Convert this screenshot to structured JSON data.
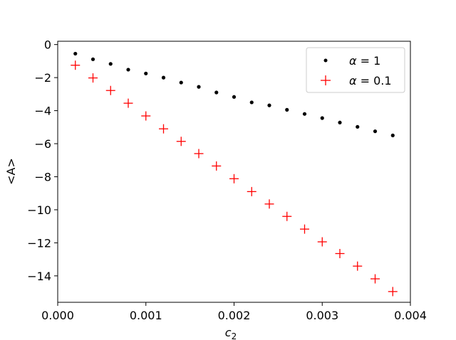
{
  "chart_data": {
    "type": "scatter",
    "title": "",
    "xlabel": "c",
    "xlabel_sub": "2",
    "ylabel": "<A>",
    "xlim": [
      0.0,
      0.004
    ],
    "ylim": [
      -15.6,
      0.2
    ],
    "xticks": [
      0.0,
      0.001,
      0.002,
      0.003,
      0.004
    ],
    "xtick_labels": [
      "0.000",
      "0.001",
      "0.002",
      "0.003",
      "0.004"
    ],
    "yticks": [
      0,
      -2,
      -4,
      -6,
      -8,
      -10,
      -12,
      -14
    ],
    "ytick_labels": [
      "0",
      "−2",
      "−4",
      "−6",
      "−8",
      "−10",
      "−12",
      "−14"
    ],
    "grid": false,
    "legend_position": "top-right",
    "x": [
      0.0002,
      0.0004,
      0.0006,
      0.0008,
      0.001,
      0.0012,
      0.0014,
      0.0016,
      0.0018,
      0.002,
      0.0022,
      0.0024,
      0.0026,
      0.0028,
      0.003,
      0.0032,
      0.0034,
      0.0036,
      0.0038
    ],
    "series": [
      {
        "name": "α = 1",
        "marker": "dot",
        "color": "#000000",
        "values": [
          -0.55,
          -0.89,
          -1.17,
          -1.52,
          -1.75,
          -2.0,
          -2.3,
          -2.56,
          -2.9,
          -3.17,
          -3.5,
          -3.68,
          -3.95,
          -4.2,
          -4.45,
          -4.72,
          -4.98,
          -5.25,
          -5.5
        ]
      },
      {
        "name": "α = 0.1",
        "marker": "plus",
        "color": "#ff0000",
        "values": [
          -1.25,
          -2.02,
          -2.78,
          -3.55,
          -4.32,
          -5.1,
          -5.86,
          -6.6,
          -7.35,
          -8.12,
          -8.9,
          -9.65,
          -10.4,
          -11.17,
          -11.94,
          -12.65,
          -13.41,
          -14.18,
          -14.95
        ]
      }
    ],
    "legend": [
      {
        "symbol": "α",
        "rest": " = 1"
      },
      {
        "symbol": "α",
        "rest": " = 0.1"
      }
    ]
  }
}
